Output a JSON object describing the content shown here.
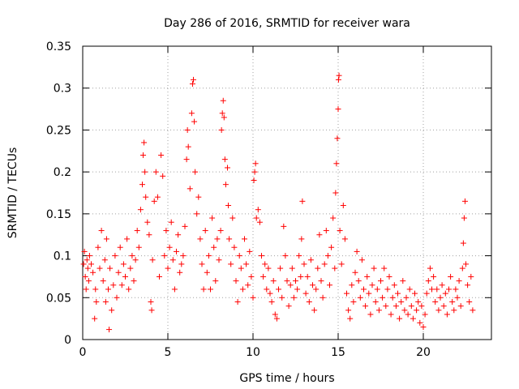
{
  "chart_data": {
    "type": "scatter",
    "title": "Day 286 of 2016, SRMTID for receiver wara",
    "xlabel": "GPS time / hours",
    "ylabel": "SRMTID / TECUs",
    "xlim": [
      0,
      24
    ],
    "ylim": [
      0,
      0.35
    ],
    "x_ticks": [
      0,
      5,
      10,
      15,
      20
    ],
    "x_tick_labels": [
      "0",
      "5",
      "10",
      "15",
      "20"
    ],
    "y_ticks": [
      0,
      0.05,
      0.1,
      0.15,
      0.2,
      0.25,
      0.3,
      0.35
    ],
    "y_tick_labels": [
      "0",
      "0.05",
      "0.1",
      "0.15",
      "0.2",
      "0.25",
      "0.3",
      "0.35"
    ],
    "grid": true,
    "marker": "+",
    "color": "#ff0000",
    "series": [
      {
        "name": "SRMTID",
        "points": [
          [
            0.05,
            0.09
          ],
          [
            0.1,
            0.105
          ],
          [
            0.15,
            0.075
          ],
          [
            0.2,
            0.06
          ],
          [
            0.25,
            0.095
          ],
          [
            0.3,
            0.085
          ],
          [
            0.35,
            0.07
          ],
          [
            0.4,
            0.1
          ],
          [
            0.5,
            0.09
          ],
          [
            0.6,
            0.08
          ],
          [
            0.7,
            0.025
          ],
          [
            0.75,
            0.06
          ],
          [
            0.8,
            0.045
          ],
          [
            0.9,
            0.11
          ],
          [
            1.0,
            0.085
          ],
          [
            1.1,
            0.13
          ],
          [
            1.2,
            0.07
          ],
          [
            1.3,
            0.095
          ],
          [
            1.35,
            0.045
          ],
          [
            1.4,
            0.12
          ],
          [
            1.5,
            0.06
          ],
          [
            1.55,
            0.012
          ],
          [
            1.6,
            0.085
          ],
          [
            1.7,
            0.035
          ],
          [
            1.8,
            0.065
          ],
          [
            1.9,
            0.1
          ],
          [
            2.0,
            0.05
          ],
          [
            2.1,
            0.08
          ],
          [
            2.2,
            0.11
          ],
          [
            2.3,
            0.065
          ],
          [
            2.4,
            0.09
          ],
          [
            2.5,
            0.075
          ],
          [
            2.6,
            0.12
          ],
          [
            2.7,
            0.06
          ],
          [
            2.8,
            0.085
          ],
          [
            2.9,
            0.1
          ],
          [
            3.0,
            0.07
          ],
          [
            3.1,
            0.095
          ],
          [
            3.2,
            0.13
          ],
          [
            3.3,
            0.11
          ],
          [
            3.4,
            0.155
          ],
          [
            3.5,
            0.185
          ],
          [
            3.55,
            0.22
          ],
          [
            3.6,
            0.235
          ],
          [
            3.65,
            0.2
          ],
          [
            3.7,
            0.17
          ],
          [
            3.8,
            0.14
          ],
          [
            3.9,
            0.125
          ],
          [
            4.0,
            0.045
          ],
          [
            4.05,
            0.035
          ],
          [
            4.1,
            0.095
          ],
          [
            4.2,
            0.165
          ],
          [
            4.3,
            0.2
          ],
          [
            4.4,
            0.17
          ],
          [
            4.5,
            0.075
          ],
          [
            4.6,
            0.22
          ],
          [
            4.7,
            0.195
          ],
          [
            4.8,
            0.1
          ],
          [
            4.9,
            0.13
          ],
          [
            5.0,
            0.085
          ],
          [
            5.1,
            0.11
          ],
          [
            5.2,
            0.14
          ],
          [
            5.3,
            0.095
          ],
          [
            5.4,
            0.06
          ],
          [
            5.5,
            0.105
          ],
          [
            5.6,
            0.125
          ],
          [
            5.7,
            0.08
          ],
          [
            5.8,
            0.09
          ],
          [
            5.9,
            0.1
          ],
          [
            6.0,
            0.135
          ],
          [
            6.1,
            0.215
          ],
          [
            6.15,
            0.25
          ],
          [
            6.2,
            0.23
          ],
          [
            6.3,
            0.18
          ],
          [
            6.4,
            0.27
          ],
          [
            6.45,
            0.305
          ],
          [
            6.5,
            0.31
          ],
          [
            6.55,
            0.26
          ],
          [
            6.6,
            0.2
          ],
          [
            6.7,
            0.15
          ],
          [
            6.8,
            0.17
          ],
          [
            6.9,
            0.12
          ],
          [
            7.0,
            0.09
          ],
          [
            7.1,
            0.06
          ],
          [
            7.2,
            0.13
          ],
          [
            7.3,
            0.08
          ],
          [
            7.4,
            0.1
          ],
          [
            7.5,
            0.06
          ],
          [
            7.6,
            0.145
          ],
          [
            7.7,
            0.11
          ],
          [
            7.8,
            0.07
          ],
          [
            7.9,
            0.12
          ],
          [
            8.0,
            0.095
          ],
          [
            8.1,
            0.13
          ],
          [
            8.15,
            0.25
          ],
          [
            8.2,
            0.27
          ],
          [
            8.25,
            0.285
          ],
          [
            8.3,
            0.265
          ],
          [
            8.35,
            0.215
          ],
          [
            8.4,
            0.185
          ],
          [
            8.5,
            0.205
          ],
          [
            8.55,
            0.16
          ],
          [
            8.6,
            0.12
          ],
          [
            8.7,
            0.09
          ],
          [
            8.8,
            0.145
          ],
          [
            8.9,
            0.11
          ],
          [
            9.0,
            0.07
          ],
          [
            9.1,
            0.045
          ],
          [
            9.2,
            0.1
          ],
          [
            9.3,
            0.085
          ],
          [
            9.4,
            0.06
          ],
          [
            9.5,
            0.12
          ],
          [
            9.6,
            0.09
          ],
          [
            9.7,
            0.065
          ],
          [
            9.8,
            0.105
          ],
          [
            9.9,
            0.075
          ],
          [
            10.0,
            0.05
          ],
          [
            10.05,
            0.19
          ],
          [
            10.1,
            0.2
          ],
          [
            10.15,
            0.21
          ],
          [
            10.2,
            0.145
          ],
          [
            10.3,
            0.155
          ],
          [
            10.4,
            0.14
          ],
          [
            10.5,
            0.1
          ],
          [
            10.6,
            0.075
          ],
          [
            10.7,
            0.09
          ],
          [
            10.8,
            0.06
          ],
          [
            10.9,
            0.085
          ],
          [
            11.0,
            0.055
          ],
          [
            11.1,
            0.045
          ],
          [
            11.2,
            0.07
          ],
          [
            11.3,
            0.03
          ],
          [
            11.4,
            0.025
          ],
          [
            11.5,
            0.06
          ],
          [
            11.6,
            0.085
          ],
          [
            11.7,
            0.05
          ],
          [
            11.8,
            0.135
          ],
          [
            11.9,
            0.1
          ],
          [
            12.0,
            0.07
          ],
          [
            12.1,
            0.04
          ],
          [
            12.2,
            0.065
          ],
          [
            12.3,
            0.085
          ],
          [
            12.4,
            0.05
          ],
          [
            12.5,
            0.07
          ],
          [
            12.6,
            0.06
          ],
          [
            12.7,
            0.1
          ],
          [
            12.8,
            0.075
          ],
          [
            12.85,
            0.12
          ],
          [
            12.9,
            0.165
          ],
          [
            13.0,
            0.09
          ],
          [
            13.1,
            0.055
          ],
          [
            13.2,
            0.075
          ],
          [
            13.3,
            0.045
          ],
          [
            13.4,
            0.095
          ],
          [
            13.5,
            0.065
          ],
          [
            13.6,
            0.035
          ],
          [
            13.7,
            0.06
          ],
          [
            13.8,
            0.085
          ],
          [
            13.9,
            0.125
          ],
          [
            14.0,
            0.07
          ],
          [
            14.1,
            0.05
          ],
          [
            14.2,
            0.09
          ],
          [
            14.3,
            0.13
          ],
          [
            14.4,
            0.1
          ],
          [
            14.5,
            0.065
          ],
          [
            14.6,
            0.11
          ],
          [
            14.7,
            0.145
          ],
          [
            14.8,
            0.085
          ],
          [
            14.85,
            0.175
          ],
          [
            14.9,
            0.21
          ],
          [
            14.95,
            0.24
          ],
          [
            15.0,
            0.275
          ],
          [
            15.02,
            0.31
          ],
          [
            15.05,
            0.315
          ],
          [
            15.1,
            0.13
          ],
          [
            15.2,
            0.09
          ],
          [
            15.3,
            0.16
          ],
          [
            15.4,
            0.12
          ],
          [
            15.5,
            0.055
          ],
          [
            15.6,
            0.035
          ],
          [
            15.7,
            0.025
          ],
          [
            15.8,
            0.065
          ],
          [
            15.9,
            0.045
          ],
          [
            16.0,
            0.08
          ],
          [
            16.1,
            0.105
          ],
          [
            16.2,
            0.07
          ],
          [
            16.3,
            0.05
          ],
          [
            16.4,
            0.095
          ],
          [
            16.5,
            0.06
          ],
          [
            16.6,
            0.04
          ],
          [
            16.7,
            0.075
          ],
          [
            16.8,
            0.055
          ],
          [
            16.9,
            0.03
          ],
          [
            17.0,
            0.065
          ],
          [
            17.1,
            0.085
          ],
          [
            17.2,
            0.045
          ],
          [
            17.3,
            0.06
          ],
          [
            17.4,
            0.035
          ],
          [
            17.5,
            0.07
          ],
          [
            17.6,
            0.05
          ],
          [
            17.7,
            0.085
          ],
          [
            17.8,
            0.04
          ],
          [
            17.9,
            0.06
          ],
          [
            18.0,
            0.075
          ],
          [
            18.1,
            0.03
          ],
          [
            18.2,
            0.05
          ],
          [
            18.3,
            0.065
          ],
          [
            18.4,
            0.04
          ],
          [
            18.5,
            0.055
          ],
          [
            18.6,
            0.025
          ],
          [
            18.7,
            0.045
          ],
          [
            18.8,
            0.07
          ],
          [
            18.9,
            0.035
          ],
          [
            19.0,
            0.05
          ],
          [
            19.1,
            0.03
          ],
          [
            19.2,
            0.06
          ],
          [
            19.3,
            0.04
          ],
          [
            19.4,
            0.025
          ],
          [
            19.5,
            0.055
          ],
          [
            19.6,
            0.035
          ],
          [
            19.7,
            0.045
          ],
          [
            19.8,
            0.02
          ],
          [
            19.9,
            0.04
          ],
          [
            20.0,
            0.015
          ],
          [
            20.1,
            0.03
          ],
          [
            20.2,
            0.055
          ],
          [
            20.3,
            0.07
          ],
          [
            20.4,
            0.085
          ],
          [
            20.5,
            0.06
          ],
          [
            20.6,
            0.075
          ],
          [
            20.7,
            0.045
          ],
          [
            20.8,
            0.06
          ],
          [
            20.9,
            0.035
          ],
          [
            21.0,
            0.05
          ],
          [
            21.1,
            0.065
          ],
          [
            21.2,
            0.04
          ],
          [
            21.3,
            0.055
          ],
          [
            21.4,
            0.03
          ],
          [
            21.5,
            0.06
          ],
          [
            21.6,
            0.075
          ],
          [
            21.7,
            0.045
          ],
          [
            21.8,
            0.035
          ],
          [
            21.9,
            0.06
          ],
          [
            22.0,
            0.05
          ],
          [
            22.1,
            0.07
          ],
          [
            22.2,
            0.04
          ],
          [
            22.3,
            0.085
          ],
          [
            22.35,
            0.115
          ],
          [
            22.4,
            0.145
          ],
          [
            22.45,
            0.165
          ],
          [
            22.5,
            0.09
          ],
          [
            22.6,
            0.065
          ],
          [
            22.7,
            0.045
          ],
          [
            22.8,
            0.075
          ],
          [
            22.9,
            0.035
          ]
        ]
      }
    ]
  }
}
